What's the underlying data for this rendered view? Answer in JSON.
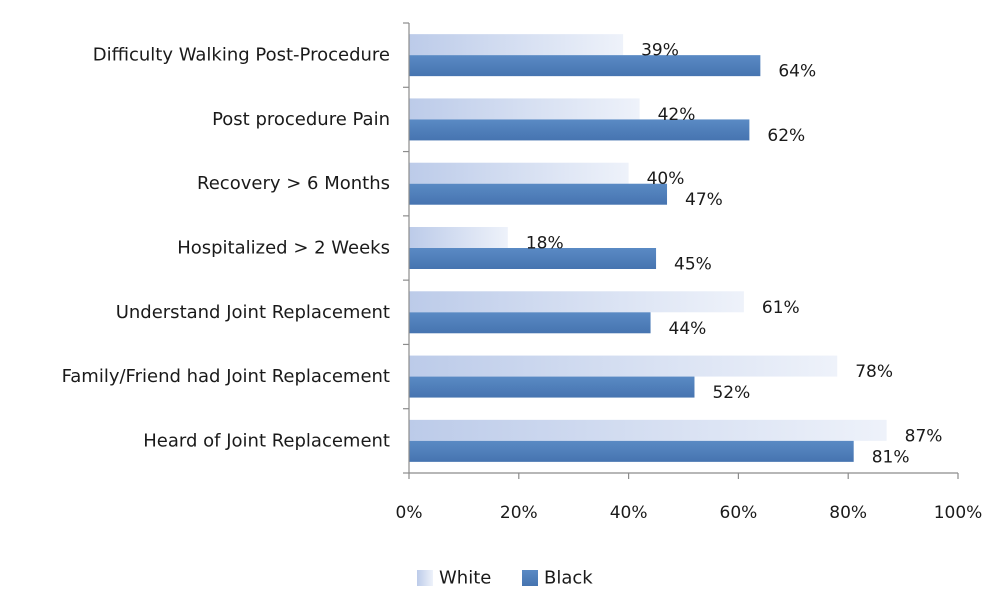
{
  "chart_data": {
    "type": "bar",
    "orientation": "horizontal",
    "categories": [
      "Difficulty Walking Post-Procedure",
      "Post procedure Pain",
      "Recovery > 6 Months",
      "Hospitalized > 2 Weeks",
      "Understand Joint Replacement",
      "Family/Friend had Joint Replacement",
      "Heard of Joint Replacement"
    ],
    "series": [
      {
        "name": "White",
        "values": [
          39,
          42,
          40,
          18,
          61,
          78,
          87
        ],
        "labels": [
          "39%",
          "42%",
          "40%",
          "18%",
          "61%",
          "78%",
          "87%"
        ],
        "color": "#c9d7ef"
      },
      {
        "name": "Black",
        "values": [
          64,
          62,
          47,
          45,
          44,
          52,
          81
        ],
        "labels": [
          "64%",
          "62%",
          "47%",
          "45%",
          "44%",
          "52%",
          "81%"
        ],
        "color": "#4f81bd"
      }
    ],
    "xlim": [
      0,
      100
    ],
    "xticks": [
      0,
      20,
      40,
      60,
      80,
      100
    ],
    "xtick_labels": [
      "0%",
      "20%",
      "40%",
      "60%",
      "80%",
      "100%"
    ],
    "title": "",
    "xlabel": "",
    "ylabel": "",
    "grid": false,
    "legend": {
      "position": "bottom",
      "entries": [
        "White",
        "Black"
      ]
    }
  }
}
